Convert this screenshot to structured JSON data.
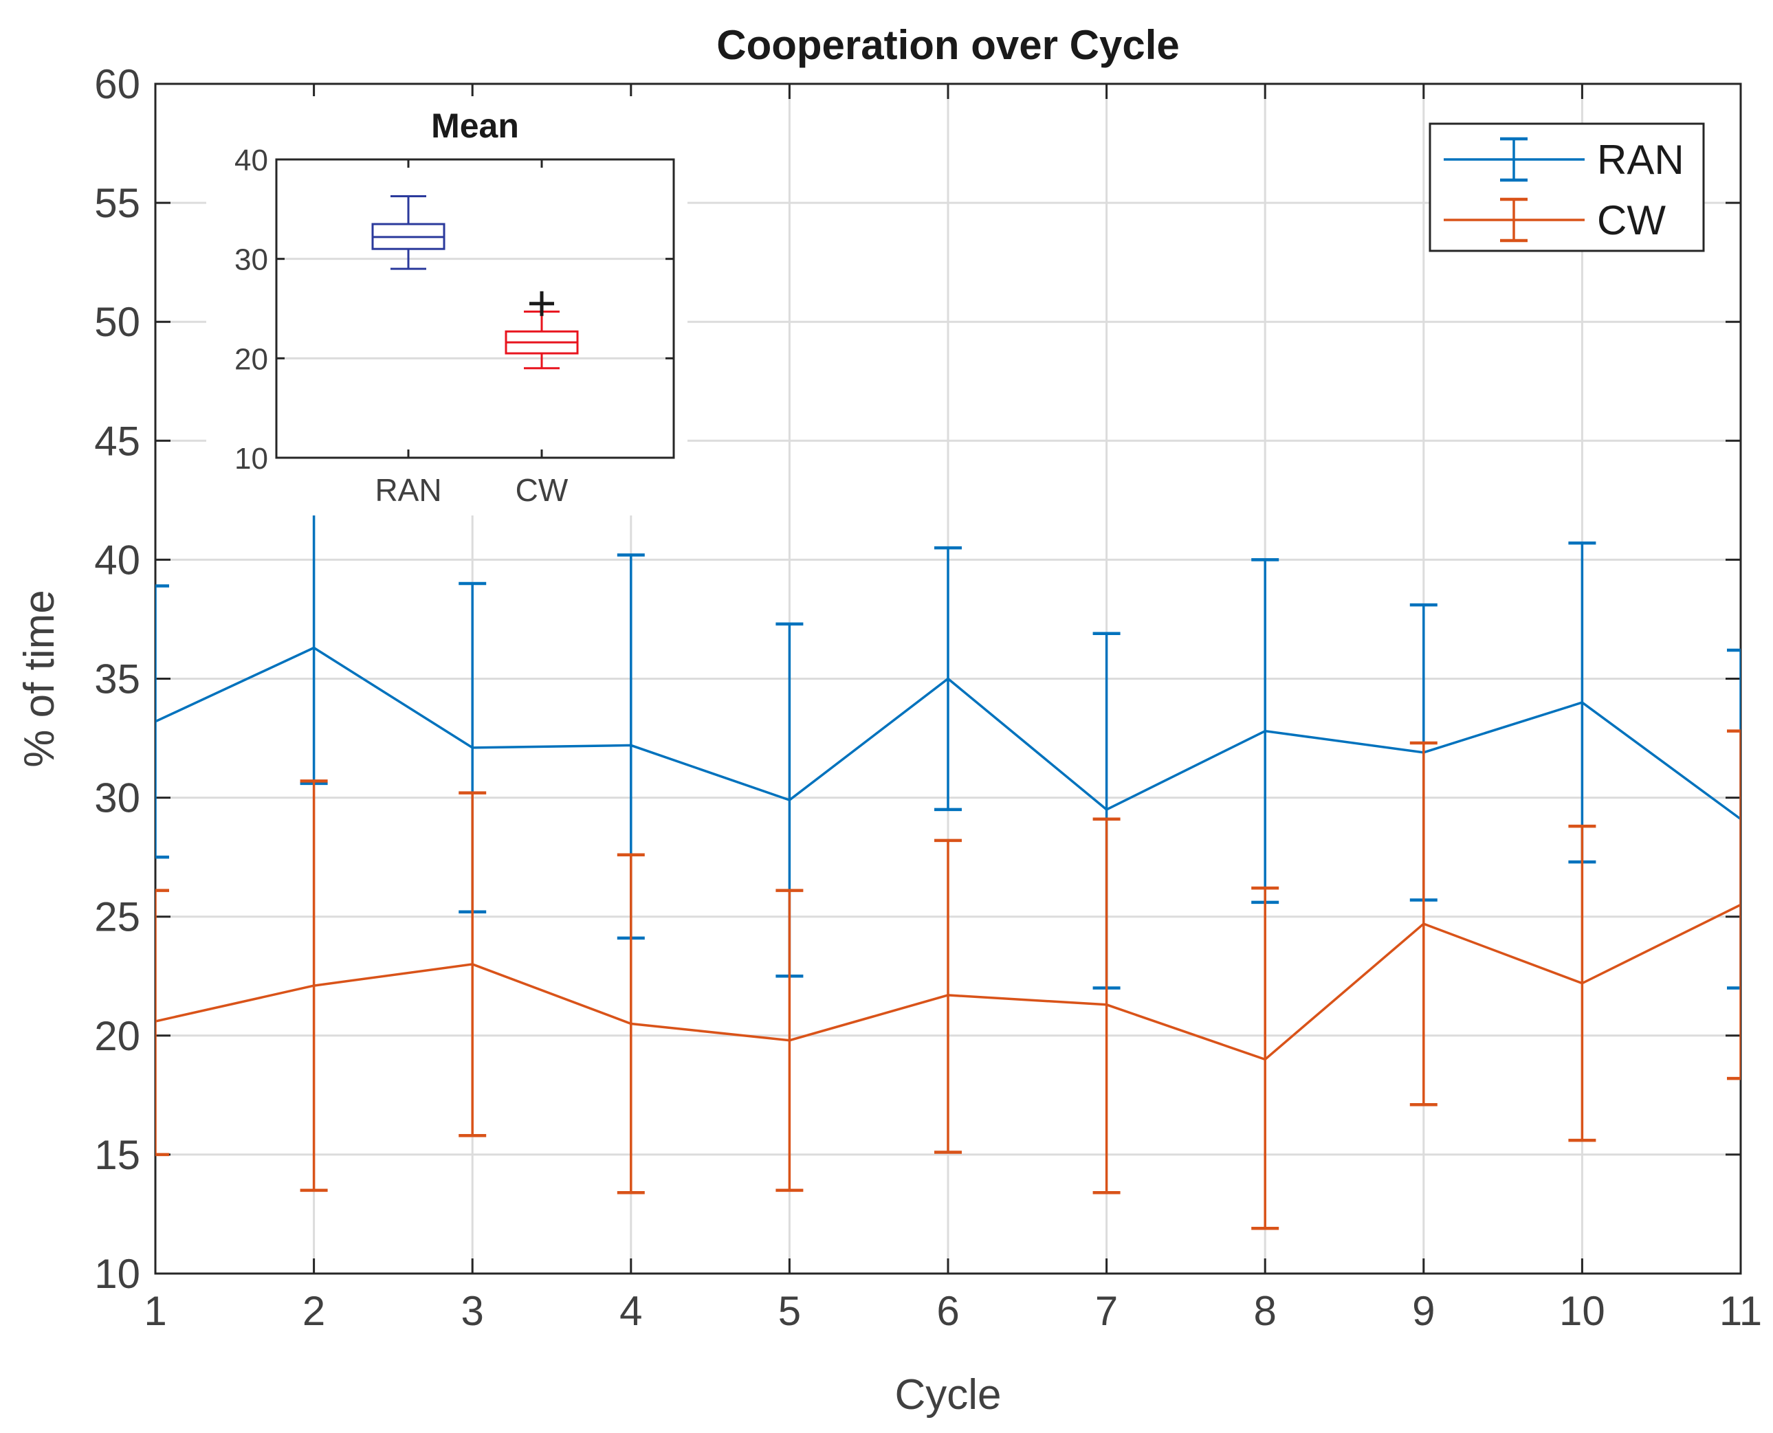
{
  "chart_data": [
    {
      "type": "line",
      "title": "Cooperation over Cycle",
      "xlabel": "Cycle",
      "ylabel": "% of time",
      "xlim": [
        1,
        11
      ],
      "ylim": [
        10,
        60
      ],
      "x": [
        1,
        2,
        3,
        4,
        5,
        6,
        7,
        8,
        9,
        10,
        11
      ],
      "x_ticks": [
        "1",
        "2",
        "3",
        "4",
        "5",
        "6",
        "7",
        "8",
        "9",
        "10",
        "11"
      ],
      "y_ticks": [
        "10",
        "15",
        "20",
        "25",
        "30",
        "35",
        "40",
        "45",
        "50",
        "55",
        "60"
      ],
      "grid": true,
      "legend_position": "top-right",
      "series": [
        {
          "name": "RAN",
          "color": "#0072BD",
          "values": [
            33.2,
            36.3,
            32.1,
            32.2,
            29.9,
            35.0,
            29.5,
            32.8,
            31.9,
            34.0,
            29.1
          ],
          "upper": [
            38.9,
            42.0,
            39.0,
            40.2,
            37.3,
            40.5,
            36.9,
            40.0,
            38.1,
            40.7,
            36.2
          ],
          "lower": [
            27.5,
            30.6,
            25.2,
            24.1,
            22.5,
            29.5,
            22.0,
            25.6,
            25.7,
            27.3,
            22.0
          ]
        },
        {
          "name": "CW",
          "color": "#D95319",
          "values": [
            20.6,
            22.1,
            23.0,
            20.5,
            19.8,
            21.7,
            21.3,
            19.0,
            24.7,
            22.2,
            25.5
          ],
          "upper": [
            26.1,
            30.7,
            30.2,
            27.6,
            26.1,
            28.2,
            29.1,
            26.2,
            32.3,
            28.8,
            32.8
          ],
          "lower": [
            15.0,
            13.5,
            15.8,
            13.4,
            13.5,
            15.1,
            13.4,
            11.9,
            17.1,
            15.6,
            18.2
          ]
        }
      ]
    },
    {
      "type": "box",
      "title": "Mean",
      "categories": [
        "RAN",
        "CW"
      ],
      "ylim": [
        10,
        40
      ],
      "y_ticks": [
        "10",
        "20",
        "30",
        "40"
      ],
      "colors": [
        "#2B3A9C",
        "#E8141E"
      ],
      "boxes": [
        {
          "name": "RAN",
          "whisker_low": 29.0,
          "q1": 31.0,
          "median": 32.2,
          "q3": 33.5,
          "whisker_high": 36.3
        },
        {
          "name": "CW",
          "whisker_low": 19.0,
          "q1": 20.5,
          "median": 21.6,
          "q3": 22.7,
          "whisker_high": 24.7,
          "outliers": [
            25.5
          ]
        }
      ]
    }
  ]
}
